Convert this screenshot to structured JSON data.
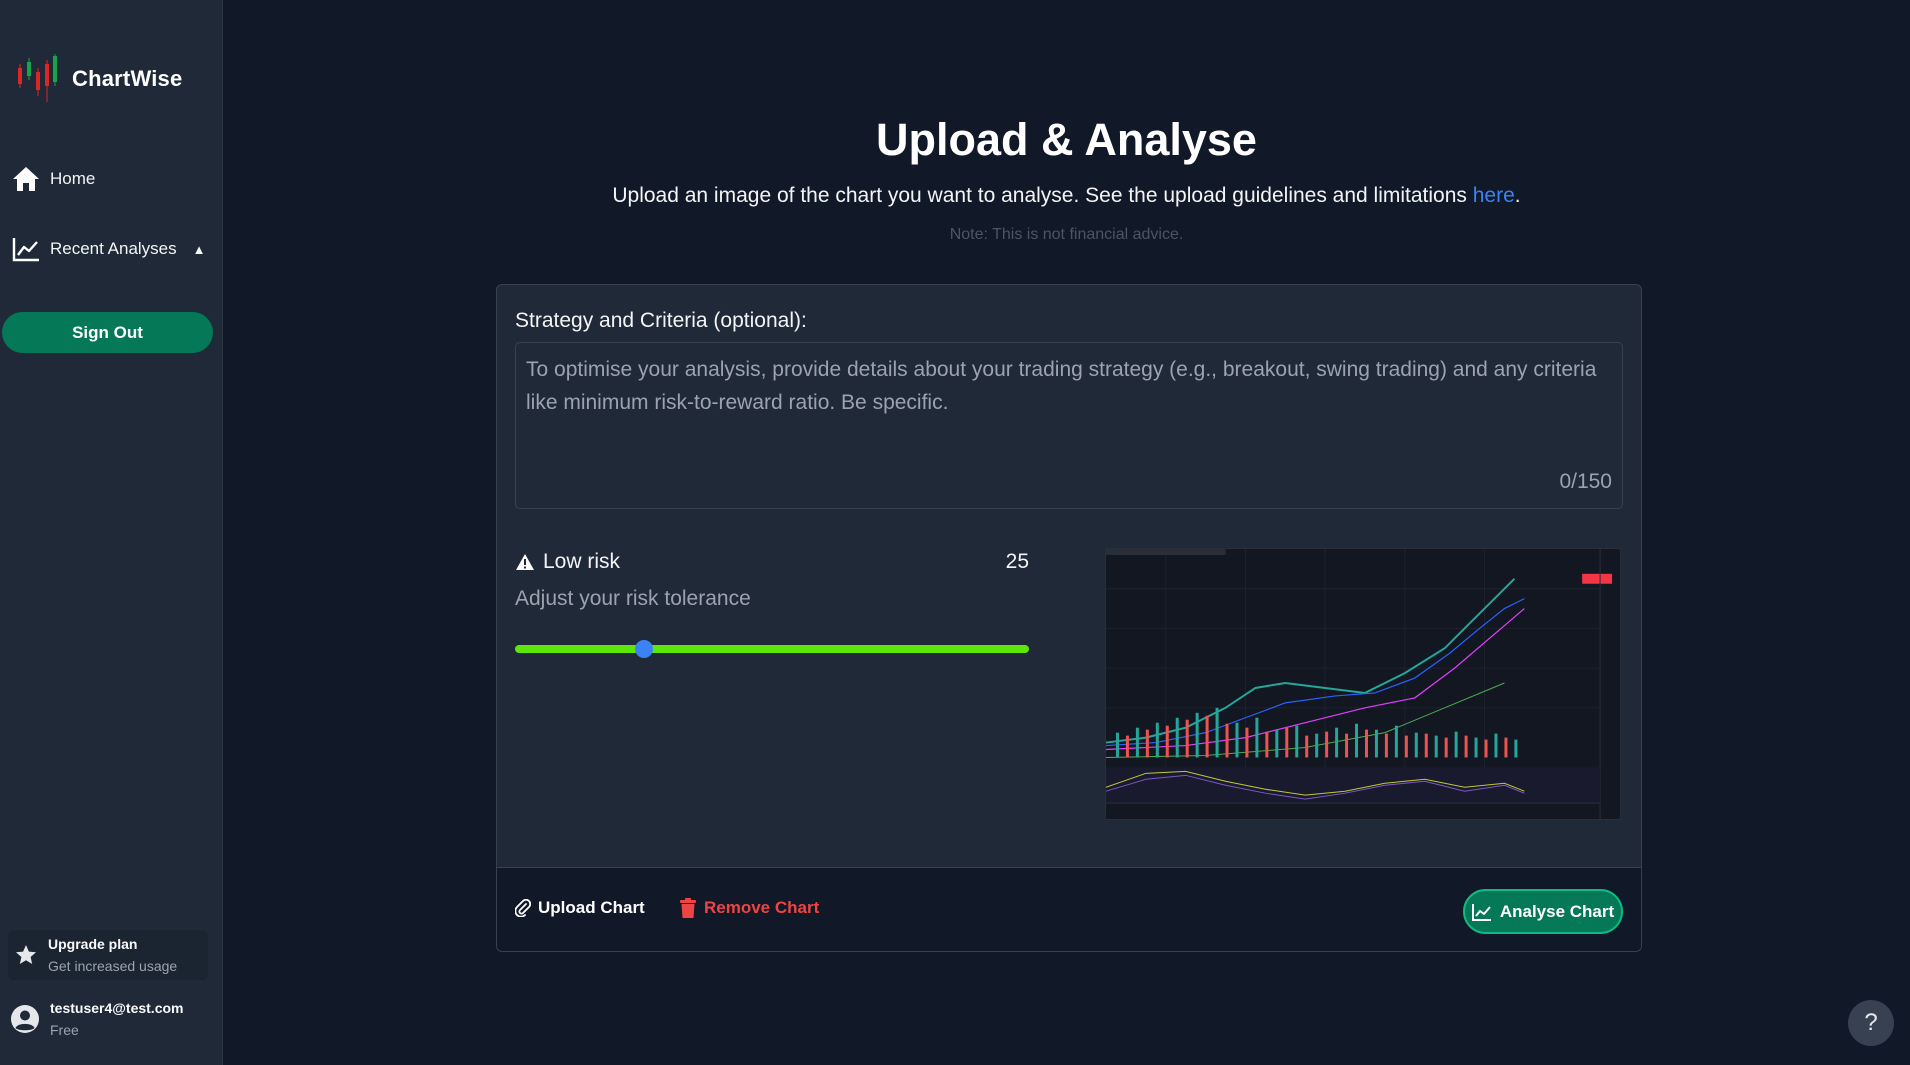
{
  "brand": {
    "name": "ChartWise"
  },
  "sidebar": {
    "items": [
      {
        "label": "Home",
        "icon": "home-icon"
      },
      {
        "label": "Recent Analyses",
        "icon": "chart-line-icon",
        "caret": "▲"
      }
    ],
    "sign_out_label": "Sign Out",
    "upgrade": {
      "title": "Upgrade plan",
      "subtitle": "Get increased usage",
      "icon": "star-icon"
    },
    "user": {
      "email": "testuser4@test.com",
      "plan": "Free",
      "icon": "user-circle-icon"
    }
  },
  "main": {
    "title": "Upload & Analyse",
    "subtitle_text": "Upload an image of the chart you want to analyse. See the upload guidelines and limitations ",
    "subtitle_link": "here",
    "subtitle_end": ".",
    "note": "Note: This is not financial advice."
  },
  "form": {
    "strategy_label": "Strategy and Criteria (optional):",
    "strategy_placeholder": "To optimise your analysis, provide details about your trading strategy (e.g., breakout, swing trading) and any criteria like minimum risk-to-reward ratio. Be specific.",
    "strategy_value": "",
    "char_count": "0/150",
    "risk": {
      "label": "Low risk",
      "value": "25",
      "value_percent": 25,
      "helper": "Adjust your risk tolerance",
      "icon": "warning-icon"
    },
    "chart_preview_alt": "Uploaded chart preview"
  },
  "footer": {
    "upload_label": "Upload Chart",
    "remove_label": "Remove Chart",
    "analyse_label": "Analyse Chart"
  },
  "help": {
    "label": "?"
  },
  "colors": {
    "background": "#111827",
    "sidebar": "#1f2937",
    "accent_green": "#047857",
    "link_blue": "#3b82f6",
    "danger_red": "#ef4444",
    "slider_green": "#5ee60a"
  }
}
